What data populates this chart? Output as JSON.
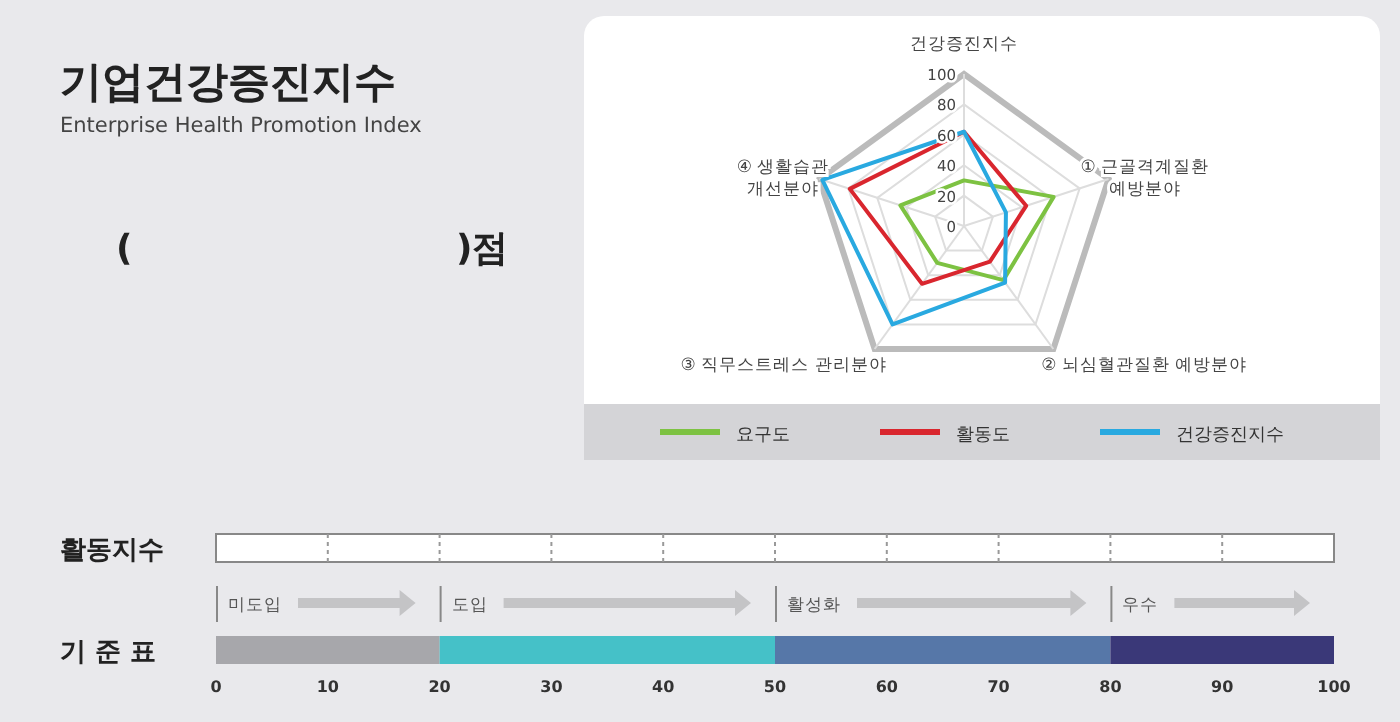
{
  "chart_data": [
    {
      "type": "other",
      "title": "기업건강증진지수",
      "subtitle": "Enterprise Health Promotion Index",
      "annotations": [
        "(",
        ")점",
        "활동지수"
      ]
    },
    {
      "type": "radar",
      "categories": [
        "건강증진지수",
        "① 근골격계질환 예방분야",
        "② 뇌심혈관질환 예방분야",
        "③ 직무스트레스 관리분야",
        "④ 생활습관 개선분야"
      ],
      "ylim": [
        0,
        100
      ],
      "yticks": [
        0,
        20,
        40,
        60,
        80,
        100
      ],
      "legend": "bottom",
      "series": [
        {
          "name": "요구도",
          "color": "#7dc242",
          "values": [
            30,
            62,
            44,
            30,
            44
          ]
        },
        {
          "name": "활동도",
          "color": "#d9262e",
          "values": [
            62,
            43,
            29,
            47,
            79
          ]
        },
        {
          "name": "건강증진지수",
          "color": "#29a9e0",
          "values": [
            62,
            29,
            46,
            80,
            98
          ]
        }
      ]
    },
    {
      "type": "bar",
      "orientation": "horizontal",
      "stacked": true,
      "categories": [
        "기 준 표"
      ],
      "xlim": [
        0,
        100
      ],
      "xticks": [
        0,
        10,
        20,
        30,
        40,
        50,
        60,
        70,
        80,
        90,
        100
      ],
      "series": [
        {
          "name": "미도입",
          "color": "#a7a7ab",
          "values": [
            20
          ]
        },
        {
          "name": "도입",
          "color": "#45c1c8",
          "values": [
            30
          ]
        },
        {
          "name": "활성화",
          "color": "#5677a8",
          "values": [
            30
          ]
        },
        {
          "name": "우수",
          "color": "#3a3878",
          "values": [
            20
          ]
        }
      ]
    }
  ]
}
